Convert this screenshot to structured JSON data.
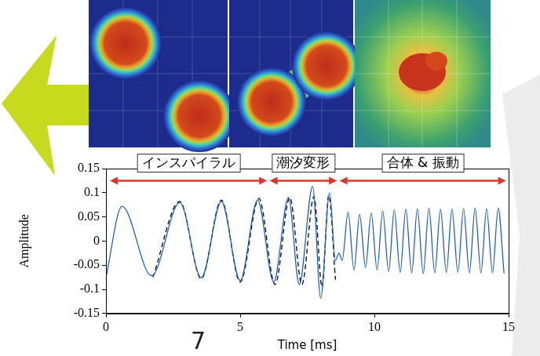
{
  "chart_data": {
    "type": "line",
    "x_label": "Time [ms]",
    "y_label": "Amplitude",
    "xlim": [
      0,
      15
    ],
    "xticks": [
      0,
      5,
      10,
      15
    ],
    "ylim": [
      -0.15,
      0.15
    ],
    "yticks": [
      -0.15,
      -0.1,
      -0.05,
      0,
      0.05,
      0.1,
      0.15
    ],
    "grid": false,
    "series": [
      {
        "color": "#1f5fc4",
        "line_style": "solid",
        "x": [
          0,
          0.6,
          1.7,
          2.75,
          3.55,
          4.3,
          5.0,
          5.65,
          6.25,
          6.8,
          7.2,
          7.7,
          8.0,
          8.33,
          8.55,
          8.68,
          8.8,
          9.02,
          9.24,
          9.45,
          9.67,
          9.88,
          10.1,
          10.31,
          10.53,
          10.74,
          10.96,
          11.17,
          11.39,
          11.6,
          11.82,
          12.03,
          12.25,
          12.46,
          12.68,
          12.89,
          13.11,
          13.32,
          13.54,
          13.75,
          13.97,
          14.18,
          14.4,
          14.61,
          14.83
        ],
        "values": [
          -0.075,
          0.072,
          -0.072,
          0.08,
          -0.076,
          0.082,
          -0.082,
          0.085,
          -0.085,
          0.09,
          -0.09,
          0.113,
          -0.118,
          0.1,
          -0.04,
          -0.025,
          -0.04,
          0.06,
          -0.06,
          0.055,
          -0.055,
          0.058,
          -0.06,
          0.062,
          -0.063,
          0.065,
          -0.065,
          0.066,
          -0.066,
          0.067,
          -0.067,
          0.068,
          -0.066,
          0.066,
          -0.065,
          0.066,
          -0.065,
          0.067,
          -0.066,
          0.068,
          -0.066,
          0.067,
          -0.066,
          0.068,
          -0.067
        ]
      },
      {
        "color": "#000000",
        "line_style": "dashed",
        "x": [
          1.75,
          2.75,
          3.55,
          4.3,
          5.0,
          5.7,
          6.3,
          6.85,
          7.3,
          7.75,
          8.05,
          8.3,
          8.55
        ],
        "values": [
          -0.075,
          0.082,
          -0.078,
          0.085,
          -0.085,
          0.088,
          -0.09,
          0.09,
          -0.09,
          0.092,
          -0.095,
          0.095,
          -0.08
        ]
      }
    ],
    "annotations": [
      {
        "text": "インスパイラル",
        "x_start": 0.15,
        "x_end": 6.0,
        "y": 0.125
      },
      {
        "text": "潮汐変形",
        "x_start": 6.1,
        "x_end": 8.6,
        "y": 0.125
      },
      {
        "text": "合体 & 振動",
        "x_start": 8.7,
        "x_end": 14.9,
        "y": 0.125
      }
    ]
  },
  "page_number": "7"
}
